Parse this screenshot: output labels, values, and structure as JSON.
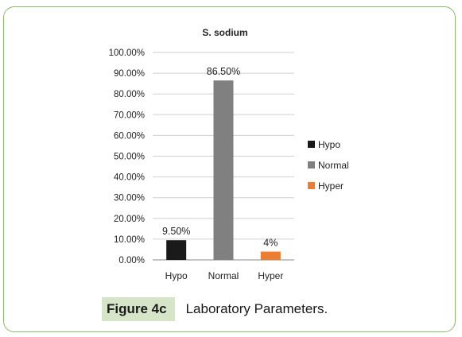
{
  "chart_data": {
    "type": "bar",
    "title": "S. sodium",
    "categories": [
      "Hypo",
      "Normal",
      "Hyper"
    ],
    "values": [
      9.5,
      86.5,
      4
    ],
    "data_labels": [
      "9.50%",
      "86.50%",
      "4%"
    ],
    "colors": [
      "#1a1a1a",
      "#808080",
      "#ed7d31"
    ],
    "ylim": [
      0,
      100
    ],
    "yticks": [
      "0.00%",
      "10.00%",
      "20.00%",
      "30.00%",
      "40.00%",
      "50.00%",
      "60.00%",
      "70.00%",
      "80.00%",
      "90.00%",
      "100.00%"
    ],
    "grid": true,
    "legend": {
      "placement": "right",
      "entries": [
        {
          "label": "Hypo",
          "color": "#1a1a1a"
        },
        {
          "label": "Normal",
          "color": "#808080"
        },
        {
          "label": "Hyper",
          "color": "#ed7d31"
        }
      ]
    },
    "xlabel": "",
    "ylabel": ""
  },
  "caption": {
    "label": "Figure 4c",
    "text": "Laboratory Parameters."
  }
}
